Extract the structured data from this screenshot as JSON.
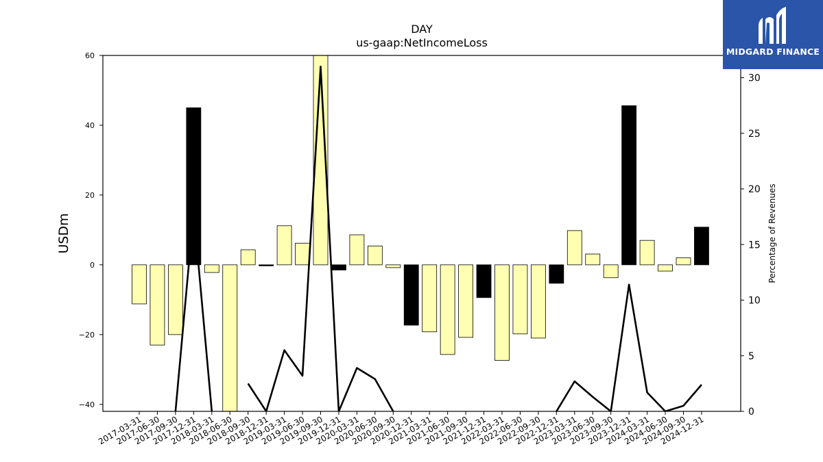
{
  "logo": {
    "text": "MIDGARD FINANCE",
    "icon": "midgard-m-logo-icon",
    "background": "#2a55a8"
  },
  "chart_data": {
    "type": "bar",
    "title": "DAY",
    "subtitle": "us-gaap:NetIncomeLoss",
    "ylabel": "USDm",
    "y2label": "Percentage of Revenues",
    "ylim": [
      -42,
      60
    ],
    "y2lim": [
      0,
      32
    ],
    "yticks": [
      -40,
      -20,
      0,
      20,
      40,
      60
    ],
    "y2ticks": [
      0,
      5,
      10,
      15,
      20,
      25,
      30
    ],
    "categories": [
      "2017-03-31",
      "2017-06-30",
      "2017-09-30",
      "2017-12-31",
      "2018-03-31",
      "2018-06-30",
      "2018-09-30",
      "2018-12-31",
      "2019-03-31",
      "2019-06-30",
      "2019-09-30",
      "2019-12-31",
      "2020-03-31",
      "2020-06-30",
      "2020-09-30",
      "2020-12-31",
      "2021-03-31",
      "2021-06-30",
      "2021-09-30",
      "2021-12-31",
      "2022-03-31",
      "2022-06-30",
      "2022-09-30",
      "2022-12-31",
      "2023-03-31",
      "2023-06-30",
      "2023-09-30",
      "2023-12-31",
      "2024-03-31",
      "2024-06-30",
      "2024-09-30",
      "2024-12-31"
    ],
    "series": [
      {
        "type": "bar",
        "axis": "left",
        "values": [
          -11.2,
          -23,
          -20,
          45,
          -2.2,
          -42,
          4.3,
          -0.3,
          11.2,
          6.2,
          60,
          -1.5,
          8.6,
          5.4,
          -0.8,
          -17.3,
          -19.2,
          -25.7,
          -20.8,
          -9.4,
          -27.4,
          -19.8,
          -21.0,
          -5.3,
          9.8,
          3.1,
          -3.7,
          45.6,
          7.0,
          -1.8,
          2.0,
          10.8
        ],
        "colors": [
          "#ffffb2",
          "#ffffb2",
          "#ffffb2",
          "#000000",
          "#ffffb2",
          "#ffffb2",
          "#ffffb2",
          "#000000",
          "#ffffb2",
          "#ffffb2",
          "#ffffb2",
          "#000000",
          "#ffffb2",
          "#ffffb2",
          "#ffffb2",
          "#000000",
          "#ffffb2",
          "#ffffb2",
          "#ffffb2",
          "#000000",
          "#ffffb2",
          "#ffffb2",
          "#ffffb2",
          "#000000",
          "#ffffb2",
          "#ffffb2",
          "#ffffb2",
          "#000000",
          "#ffffb2",
          "#ffffb2",
          "#ffffb2",
          "#000000"
        ]
      },
      {
        "type": "line",
        "axis": "right",
        "color": "#000000",
        "values": [
          null,
          null,
          0,
          18,
          0,
          null,
          2.5,
          0,
          5.5,
          3.2,
          31,
          0,
          3.9,
          2.9,
          0,
          null,
          null,
          null,
          null,
          null,
          null,
          null,
          null,
          0,
          2.7,
          1.3,
          0,
          11.4,
          1.7,
          0,
          0.5,
          2.4
        ]
      }
    ],
    "grid": false
  }
}
